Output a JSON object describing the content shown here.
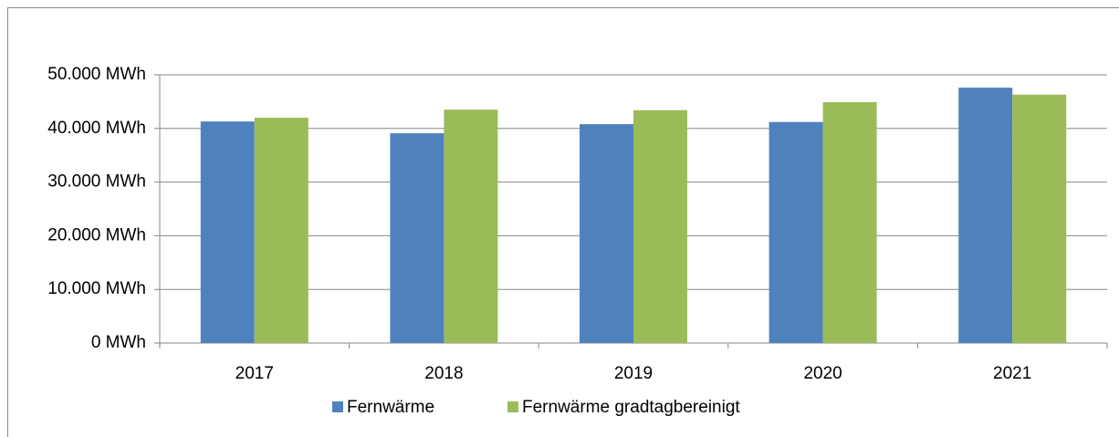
{
  "chart_data": {
    "type": "bar",
    "categories": [
      "2017",
      "2018",
      "2019",
      "2020",
      "2021"
    ],
    "series": [
      {
        "name": "Fernwärme",
        "color": "#4f81bd",
        "values": [
          41300,
          39100,
          40800,
          41200,
          47600
        ]
      },
      {
        "name": "Fernwärme gradtagbereinigt",
        "color": "#9bbb59",
        "values": [
          42000,
          43500,
          43400,
          44900,
          46300
        ]
      }
    ],
    "ylim": [
      0,
      50000
    ],
    "yticks": [
      {
        "value": 0,
        "label": "0 MWh"
      },
      {
        "value": 10000,
        "label": "10.000 MWh"
      },
      {
        "value": 20000,
        "label": "20.000 MWh"
      },
      {
        "value": 30000,
        "label": "30.000 MWh"
      },
      {
        "value": 40000,
        "label": "40.000 MWh"
      },
      {
        "value": 50000,
        "label": "50.000 MWh"
      }
    ],
    "grid": true
  }
}
